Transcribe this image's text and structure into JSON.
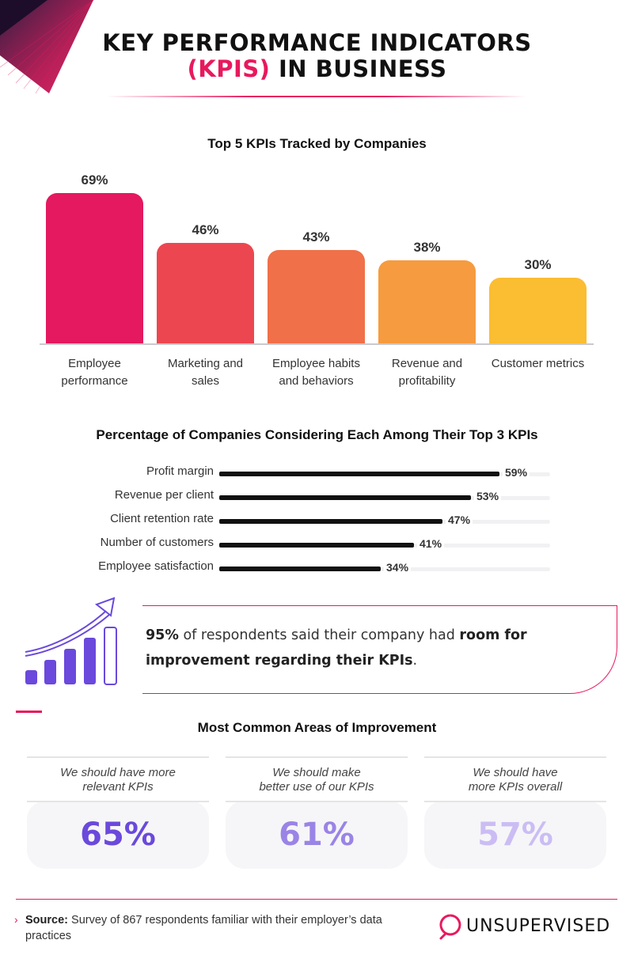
{
  "header": {
    "title_line1": "KEY PERFORMANCE INDICATORS",
    "title_line2_accent": "(KPIS)",
    "title_line2_rest": " IN BUSINESS"
  },
  "chart_data": [
    {
      "type": "bar",
      "title": "Top 5 KPIs Tracked by Companies",
      "categories": [
        [
          "Employee",
          "performance"
        ],
        [
          "Marketing and",
          "sales"
        ],
        [
          "Employee habits",
          "and behaviors"
        ],
        [
          "Revenue and",
          "profitability"
        ],
        [
          "Customer metrics",
          ""
        ]
      ],
      "values": [
        69,
        46,
        43,
        38,
        30
      ],
      "labels": [
        "69%",
        "46%",
        "43%",
        "38%",
        "30%"
      ],
      "colors": [
        "#e4195f",
        "#ec4750",
        "#f07049",
        "#f69b3f",
        "#fbbd31"
      ],
      "ylim": [
        0,
        100
      ]
    },
    {
      "type": "bar",
      "orientation": "horizontal",
      "title": "Percentage of Companies Considering Each Among Their Top 3 KPIs",
      "categories": [
        "Profit margin",
        "Revenue per client",
        "Client retention rate",
        "Number of customers",
        "Employee satisfaction"
      ],
      "values": [
        59,
        53,
        47,
        41,
        34
      ],
      "labels": [
        "59%",
        "53%",
        "47%",
        "41%",
        "34%"
      ],
      "xlim": [
        0,
        70
      ],
      "bar_color": "#111111",
      "track_color": "#f1f1f3"
    }
  ],
  "callout": {
    "stat": "95%",
    "text_mid": " of respondents said their company had ",
    "bold_end": "room for improvement regarding their KPIs",
    "period": "."
  },
  "improvement": {
    "title": "Most Common Areas of Improvement",
    "cards": [
      {
        "line1": "We should have more",
        "line2": "relevant KPIs",
        "value": "65%",
        "color": "#6a49dc"
      },
      {
        "line1": "We should make",
        "line2": "better use of our KPIs",
        "value": "61%",
        "color": "#9a84e6"
      },
      {
        "line1": "We should have",
        "line2": "more KPIs overall",
        "value": "57%",
        "color": "#cbbdf4"
      }
    ]
  },
  "footer": {
    "chevron": "›",
    "source_label": "Source:",
    "source_text": " Survey of 867 respondents familiar with their employer’s data practices",
    "logo_text": "UNSUPERVISED"
  },
  "colors": {
    "accent": "#e8195d",
    "purple": "#6a49dc"
  }
}
